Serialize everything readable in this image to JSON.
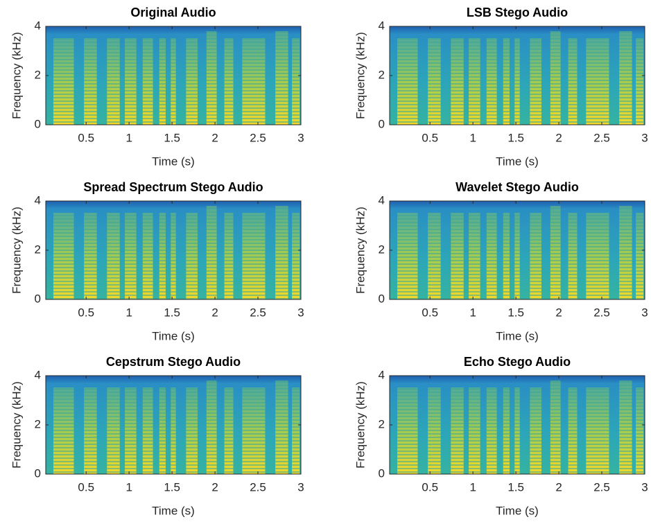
{
  "chart_data": [
    {
      "type": "spectrogram",
      "title": "Original Audio",
      "xlabel": "Time (s)",
      "ylabel": "Frequency (kHz)",
      "xlim": [
        0.03,
        3
      ],
      "xticks": [
        0.5,
        1,
        1.5,
        2,
        2.5,
        3
      ],
      "ylim": [
        0,
        4
      ],
      "yticks": [
        0,
        2,
        4
      ]
    },
    {
      "type": "spectrogram",
      "title": "LSB Stego Audio",
      "xlabel": "Time (s)",
      "ylabel": "Frequency (kHz)",
      "xlim": [
        0.03,
        3
      ],
      "xticks": [
        0.5,
        1,
        1.5,
        2,
        2.5,
        3
      ],
      "ylim": [
        0,
        4
      ],
      "yticks": [
        0,
        2,
        4
      ]
    },
    {
      "type": "spectrogram",
      "title": "Spread Spectrum Stego Audio",
      "xlabel": "Time (s)",
      "ylabel": "Frequency (kHz)",
      "xlim": [
        0.03,
        3
      ],
      "xticks": [
        0.5,
        1,
        1.5,
        2,
        2.5,
        3
      ],
      "ylim": [
        0,
        4
      ],
      "yticks": [
        0,
        2,
        4
      ]
    },
    {
      "type": "spectrogram",
      "title": "Wavelet Stego Audio",
      "xlabel": "Time (s)",
      "ylabel": "Frequency (kHz)",
      "xlim": [
        0.03,
        3
      ],
      "xticks": [
        0.5,
        1,
        1.5,
        2,
        2.5,
        3
      ],
      "ylim": [
        0,
        4
      ],
      "yticks": [
        0,
        2,
        4
      ]
    },
    {
      "type": "spectrogram",
      "title": "Cepstrum Stego Audio",
      "xlabel": "Time (s)",
      "ylabel": "Frequency (kHz)",
      "xlim": [
        0.03,
        3
      ],
      "xticks": [
        0.5,
        1,
        1.5,
        2,
        2.5,
        3
      ],
      "ylim": [
        0,
        4
      ],
      "yticks": [
        0,
        2,
        4
      ]
    },
    {
      "type": "spectrogram",
      "title": "Echo Stego Audio",
      "xlabel": "Time (s)",
      "ylabel": "Frequency (kHz)",
      "xlim": [
        0.03,
        3
      ],
      "xticks": [
        0.5,
        1,
        1.5,
        2,
        2.5,
        3
      ],
      "ylim": [
        0,
        4
      ],
      "yticks": [
        0,
        2,
        4
      ]
    }
  ]
}
